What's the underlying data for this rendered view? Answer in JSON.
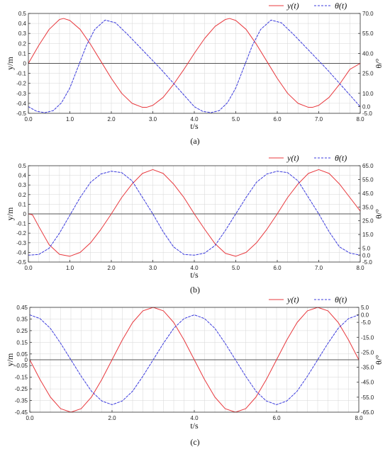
{
  "chart_data": [
    {
      "type": "line",
      "panel_label": "(a)",
      "xlabel": "t/s",
      "ylabel": "y/m",
      "y2label": "θ/°",
      "xlim": [
        0,
        8
      ],
      "ylim": [
        -0.5,
        0.5
      ],
      "y2lim": [
        -5,
        70
      ],
      "x_ticks": [
        0,
        1,
        2,
        3,
        4,
        5,
        6,
        7,
        8
      ],
      "x_tick_labels": [
        "0.0",
        "1.0",
        "2.0",
        "3.0",
        "4.0",
        "5.0",
        "6.0",
        "7.0",
        "8.0"
      ],
      "y_ticks": [
        -0.5,
        -0.4,
        -0.3,
        -0.2,
        -0.1,
        0,
        0.1,
        0.2,
        0.3,
        0.4,
        0.5
      ],
      "y_tick_labels": [
        "-0.5",
        "-0.4",
        "-0.3",
        "-0.2",
        "-0.1",
        "0",
        "0.1",
        "0.2",
        "0.3",
        "0.4",
        "0.5"
      ],
      "y2_ticks": [
        -5,
        0,
        10,
        25,
        40,
        55,
        70
      ],
      "y2_tick_labels": [
        "-5.0",
        "0.0",
        "10.0",
        "25.0",
        "40.0",
        "55.0",
        "70.0"
      ],
      "grid": true,
      "legend": "top-right",
      "series": [
        {
          "name": "y(t)",
          "axis": "left",
          "color": "#e8383d",
          "dash": "solid",
          "x": [
            0,
            0.25,
            0.5,
            0.75,
            0.85,
            1,
            1.25,
            1.5,
            1.75,
            2,
            2.25,
            2.5,
            2.75,
            2.85,
            3,
            3.25,
            3.5,
            3.75,
            4,
            4.25,
            4.5,
            4.75,
            4.85,
            5,
            5.25,
            5.5,
            5.75,
            6,
            6.25,
            6.5,
            6.75,
            6.85,
            7,
            7.25,
            7.5,
            7.75,
            8
          ],
          "values": [
            0,
            0.18,
            0.34,
            0.44,
            0.45,
            0.43,
            0.34,
            0.19,
            0.02,
            -0.15,
            -0.3,
            -0.4,
            -0.44,
            -0.44,
            -0.42,
            -0.34,
            -0.21,
            -0.06,
            0.1,
            0.25,
            0.37,
            0.44,
            0.45,
            0.43,
            0.34,
            0.19,
            0.02,
            -0.15,
            -0.3,
            -0.4,
            -0.44,
            -0.44,
            -0.42,
            -0.34,
            -0.21,
            -0.06,
            0.0
          ]
        },
        {
          "name": "θ(t)",
          "axis": "right",
          "color": "#3b3bdc",
          "dash": "dashed",
          "x": [
            0,
            0.2,
            0.4,
            0.6,
            0.8,
            1,
            1.2,
            1.4,
            1.6,
            1.85,
            2.1,
            2.4,
            2.8,
            3.2,
            3.6,
            4,
            4.2,
            4.4,
            4.6,
            4.8,
            5,
            5.2,
            5.4,
            5.6,
            5.85,
            6.1,
            6.4,
            6.8,
            7.2,
            7.6,
            8
          ],
          "values": [
            0,
            -3.5,
            -4.5,
            -3,
            3,
            14,
            30,
            46,
            58,
            65,
            63,
            54,
            41,
            28,
            14,
            0,
            -3.5,
            -4.5,
            -3,
            3,
            14,
            30,
            46,
            58,
            65,
            63,
            54,
            41,
            28,
            14,
            0
          ]
        }
      ]
    },
    {
      "type": "line",
      "panel_label": "(b)",
      "xlabel": "t/s",
      "ylabel": "y/m",
      "y2label": "θ/°",
      "xlim": [
        0,
        8
      ],
      "ylim": [
        -0.5,
        0.5
      ],
      "y2lim": [
        -5,
        65
      ],
      "x_ticks": [
        0,
        1,
        2,
        3,
        4,
        5,
        6,
        7,
        8
      ],
      "x_tick_labels": [
        "0.0",
        "1.0",
        "2.0",
        "3.0",
        "4.0",
        "5.0",
        "6.0",
        "7.0",
        "8.0"
      ],
      "y_ticks": [
        -0.5,
        -0.4,
        -0.3,
        -0.2,
        -0.1,
        0,
        0.1,
        0.2,
        0.3,
        0.4,
        0.5
      ],
      "y_tick_labels": [
        "-0.5",
        "-0.4",
        "-0.3",
        "-0.2",
        "-0.1",
        "0",
        "0.1",
        "0.2",
        "0.3",
        "0.4",
        "0.5"
      ],
      "y2_ticks": [
        -5,
        0,
        5,
        15,
        25,
        35,
        45,
        55,
        65
      ],
      "y2_tick_labels": [
        "-5.0",
        "0.0",
        "5.0",
        "15.0",
        "25.0",
        "35.0",
        "45.0",
        "55.0",
        "65.0"
      ],
      "grid": true,
      "legend": "top-right",
      "series": [
        {
          "name": "y(t)",
          "axis": "left",
          "color": "#e8383d",
          "dash": "solid",
          "x": [
            0,
            0.1,
            0.25,
            0.5,
            0.75,
            1,
            1.25,
            1.5,
            1.75,
            2,
            2.25,
            2.5,
            2.75,
            3,
            3.25,
            3.5,
            3.75,
            4,
            4.25,
            4.5,
            4.75,
            5,
            5.25,
            5.5,
            5.75,
            6,
            6.25,
            6.5,
            6.75,
            7,
            7.25,
            7.5,
            7.75,
            8
          ],
          "values": [
            0,
            -0.01,
            -0.13,
            -0.32,
            -0.42,
            -0.44,
            -0.4,
            -0.3,
            -0.16,
            0.0,
            0.17,
            0.31,
            0.42,
            0.46,
            0.42,
            0.31,
            0.17,
            0.0,
            -0.16,
            -0.31,
            -0.41,
            -0.44,
            -0.4,
            -0.3,
            -0.16,
            0.0,
            0.17,
            0.31,
            0.42,
            0.46,
            0.42,
            0.31,
            0.17,
            0.03
          ]
        },
        {
          "name": "θ(t)",
          "axis": "right",
          "color": "#3b3bdc",
          "dash": "dashed",
          "x": [
            0,
            0.25,
            0.5,
            0.75,
            1,
            1.25,
            1.5,
            1.75,
            2,
            2.25,
            2.5,
            2.75,
            3,
            3.25,
            3.5,
            3.75,
            4,
            4.25,
            4.5,
            4.75,
            5,
            5.25,
            5.5,
            5.75,
            6,
            6.25,
            6.5,
            6.75,
            7,
            7.25,
            7.5,
            7.75,
            8
          ],
          "values": [
            0,
            0.5,
            5,
            16,
            29,
            42,
            53,
            59,
            61,
            60,
            54,
            42,
            30,
            17,
            6,
            0.5,
            0,
            1.5,
            7,
            18,
            30,
            42,
            53,
            59,
            61,
            60,
            54,
            42,
            30,
            17,
            6,
            1.5,
            0
          ]
        }
      ]
    },
    {
      "type": "line",
      "panel_label": "(c)",
      "xlabel": "t/s",
      "ylabel": "y/m",
      "y2label": "θ/°",
      "xlim": [
        0,
        8
      ],
      "ylim": [
        -0.45,
        0.45
      ],
      "y2lim": [
        -65,
        5
      ],
      "x_ticks": [
        0,
        2,
        4,
        6,
        8
      ],
      "x_tick_labels": [
        "0.0",
        "2.0",
        "4.0",
        "6.0",
        "8.0"
      ],
      "y_ticks": [
        -0.45,
        -0.35,
        -0.25,
        -0.15,
        -0.05,
        0,
        0.05,
        0.15,
        0.25,
        0.35,
        0.45
      ],
      "y_tick_labels": [
        "-0.45",
        "-0.35",
        "-0.25",
        "-0.15",
        "-0.05",
        "0",
        "0.05",
        "0.15",
        "0.25",
        "0.35",
        "0.45"
      ],
      "y2_ticks": [
        -65,
        -55,
        -45,
        -35,
        -25,
        -15,
        -5,
        0,
        5
      ],
      "y2_tick_labels": [
        "-65.0",
        "-55.0",
        "-45.0",
        "-35.0",
        "-25.0",
        "-15.0",
        "-5.0",
        "0.0",
        "5.0"
      ],
      "grid": true,
      "legend": "top-right",
      "series": [
        {
          "name": "y(t)",
          "axis": "left",
          "color": "#e8383d",
          "dash": "solid",
          "x": [
            0,
            0.25,
            0.5,
            0.75,
            1,
            1.25,
            1.5,
            1.75,
            2,
            2.25,
            2.5,
            2.75,
            3,
            3.25,
            3.5,
            3.75,
            4,
            4.25,
            4.5,
            4.75,
            5,
            5.25,
            5.5,
            5.75,
            6,
            6.25,
            6.5,
            6.75,
            7,
            7.25,
            7.5,
            7.75,
            8
          ],
          "values": [
            0,
            -0.17,
            -0.32,
            -0.42,
            -0.45,
            -0.42,
            -0.32,
            -0.17,
            0,
            0.17,
            0.32,
            0.42,
            0.45,
            0.42,
            0.32,
            0.17,
            0,
            -0.17,
            -0.32,
            -0.42,
            -0.45,
            -0.42,
            -0.32,
            -0.17,
            0,
            0.17,
            0.32,
            0.42,
            0.45,
            0.42,
            0.32,
            0.17,
            0
          ]
        },
        {
          "name": "θ(t)",
          "axis": "right",
          "color": "#3b3bdc",
          "dash": "dashed",
          "x": [
            0,
            0.25,
            0.5,
            0.75,
            1,
            1.25,
            1.5,
            1.75,
            2,
            2.25,
            2.5,
            2.75,
            3,
            3.25,
            3.5,
            3.75,
            4,
            4.25,
            4.5,
            4.75,
            5,
            5.25,
            5.5,
            5.75,
            6,
            6.25,
            6.5,
            6.75,
            7,
            7.25,
            7.5,
            7.75,
            8
          ],
          "values": [
            0,
            -2.5,
            -9,
            -19,
            -30,
            -41,
            -51,
            -57.5,
            -60,
            -57.5,
            -51,
            -41,
            -30,
            -19,
            -9,
            -2.5,
            0,
            -2.5,
            -9,
            -19,
            -30,
            -41,
            -51,
            -57.5,
            -60,
            -57.5,
            -51,
            -41,
            -30,
            -19,
            -9,
            -2.5,
            0
          ]
        }
      ]
    }
  ],
  "colors": {
    "grid": "#d6d6d6",
    "axis": "#333333",
    "zero_line": "#555555"
  }
}
